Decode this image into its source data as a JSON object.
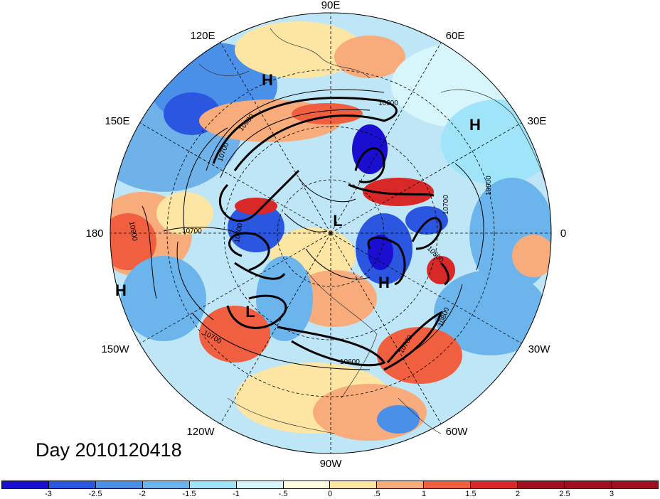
{
  "map": {
    "projection": "polar stereographic, northern hemisphere",
    "longitude_labels": [
      "90E",
      "60E",
      "30E",
      "0",
      "30W",
      "60W",
      "90W",
      "120W",
      "150W",
      "180",
      "150E",
      "120E"
    ],
    "pressure_labels": [
      {
        "text": "H",
        "role": "high"
      },
      {
        "text": "H",
        "role": "high"
      },
      {
        "text": "H",
        "role": "high"
      },
      {
        "text": "H",
        "role": "high"
      },
      {
        "text": "L",
        "role": "low"
      },
      {
        "text": "L",
        "role": "low"
      }
    ],
    "contour_labels": [
      "10600",
      "10700",
      "10900",
      "10600",
      "10700",
      "10900",
      "10700",
      "10900",
      "10500",
      "10800",
      "10700",
      "10700",
      "10600"
    ],
    "contour_color": "#000000",
    "anomaly_colors": [
      "#1a0fd0",
      "#2b56e0",
      "#4a90e8",
      "#70b8f0",
      "#a0e0f8",
      "#d4f4fc",
      "#fffbe0",
      "#fde4a0",
      "#f8b080",
      "#f06040",
      "#d82828",
      "#a00f20"
    ]
  },
  "title": {
    "day_label": "Day 2010120418"
  },
  "colorbar": {
    "colors": [
      "#1a0fd0",
      "#2b56e0",
      "#4a90e8",
      "#6cb4ec",
      "#a0e4fa",
      "#d6f6fc",
      "#fffbde",
      "#fde6a4",
      "#f8ac7c",
      "#f06040",
      "#d82828",
      "#a00f20",
      "#a00f20",
      "#a00f20"
    ],
    "tick_labels": [
      "-3",
      "-2.5",
      "-2",
      "-1.5",
      "-1",
      "-.5",
      "0",
      ".5",
      "1",
      "1.5",
      "2",
      "2.5",
      "3"
    ]
  }
}
